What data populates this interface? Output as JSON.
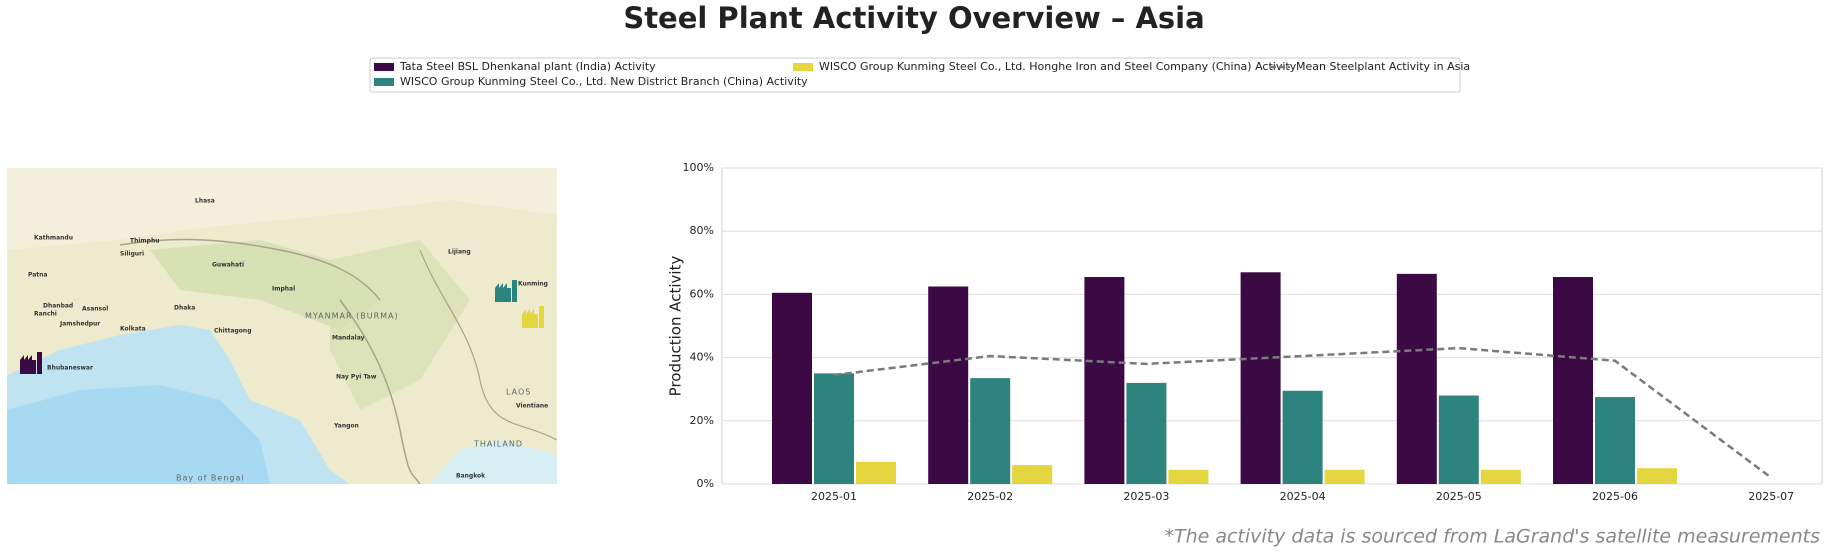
{
  "chart_data": {
    "type": "bar",
    "title": "Steel Plant Activity Overview – Asia",
    "ylabel": "Production Activity",
    "footnote": "*The activity data is sourced from LaGrand's satellite measurements",
    "categories": [
      "2025-01",
      "2025-02",
      "2025-03",
      "2025-04",
      "2025-05",
      "2025-06",
      "2025-07"
    ],
    "series": [
      {
        "name": "Tata Steel BSL Dhenkanal plant (India) Activity",
        "color": "#3b0a45",
        "values": [
          60.5,
          62.5,
          65.5,
          67,
          66.5,
          65.5,
          null
        ]
      },
      {
        "name": "WISCO Group Kunming Steel Co., Ltd. New District Branch (China) Activity",
        "color": "#2d837e",
        "values": [
          35,
          33.5,
          32,
          29.5,
          28,
          27.5,
          null
        ]
      },
      {
        "name": "WISCO Group Kunming Steel Co., Ltd. Honghe Iron and Steel Company (China) Activity",
        "color": "#e3d63f",
        "values": [
          7,
          6,
          4.5,
          4.5,
          4.5,
          5,
          null
        ]
      },
      {
        "name": "Mean Steelplant Activity in Asia",
        "type": "line",
        "dashed": true,
        "color": "#7a7a7a",
        "values": [
          34.5,
          40.5,
          38,
          40.5,
          43,
          39,
          2
        ]
      }
    ],
    "ylim": [
      0,
      100
    ],
    "yticks": [
      {
        "value": 0,
        "label": "0%"
      },
      {
        "value": 20,
        "label": "20%"
      },
      {
        "value": 40,
        "label": "40%"
      },
      {
        "value": 60,
        "label": "60%"
      },
      {
        "value": 80,
        "label": "80%"
      },
      {
        "value": 100,
        "label": "100%"
      }
    ],
    "grid": true
  },
  "map": {
    "labels": [
      "Lhasa",
      "Kathmandu",
      "Thimphu",
      "Patna",
      "Siliguri",
      "Guwahati",
      "Imphal",
      "Dhaka",
      "Ranchi",
      "Dhanbad",
      "Asansol",
      "Jamshedpur",
      "Kolkata",
      "Chittagong",
      "Bhubaneswar",
      "Mandalay",
      "Nay Pyi Taw",
      "Yangon",
      "Lijiang",
      "Kunming",
      "Vientiane",
      "Bangkok"
    ],
    "countries": [
      "MYANMAR (BURMA)",
      "THAILAND",
      "LAOS",
      "Bay of Bengal"
    ]
  }
}
